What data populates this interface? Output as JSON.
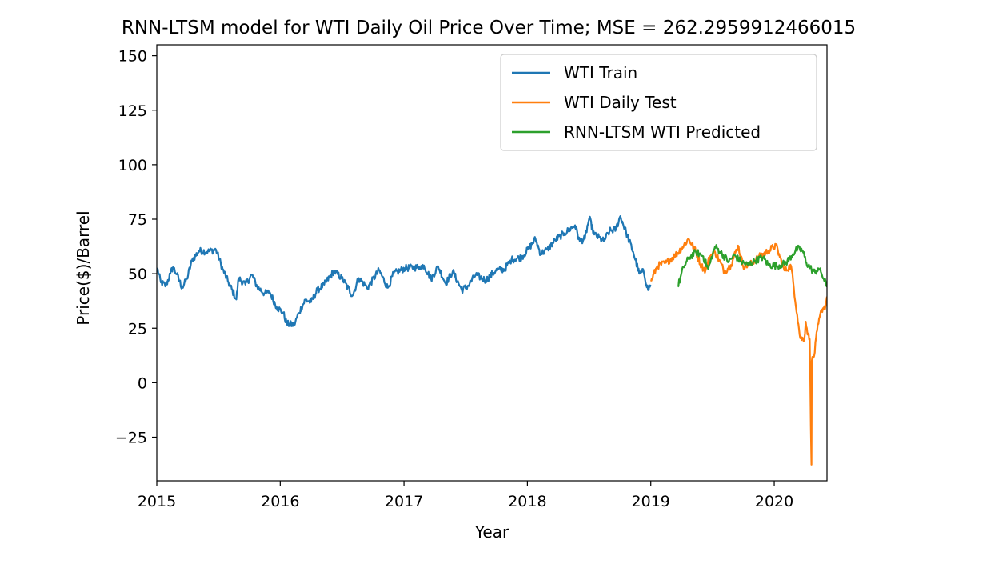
{
  "chart_data": {
    "type": "line",
    "title": "RNN-LTSM model for WTI Daily Oil Price Over Time; MSE = 262.2959912466015",
    "xlabel": "Year",
    "ylabel": "Price($)/Barrel",
    "xlim": [
      "2015-01-01",
      "2020-06-05"
    ],
    "ylim": [
      -45,
      155
    ],
    "xticks": [
      "2015",
      "2016",
      "2017",
      "2018",
      "2019",
      "2020"
    ],
    "yticks": [
      "−25",
      "0",
      "25",
      "50",
      "75",
      "100",
      "125",
      "150"
    ],
    "grid": false,
    "legend_position": "top-right",
    "series": [
      {
        "name": "WTI Train",
        "color": "#1f77b4",
        "points": [
          [
            "2015-01-02",
            52.7
          ],
          [
            "2015-01-13",
            46.0
          ],
          [
            "2015-01-28",
            44.5
          ],
          [
            "2015-02-10",
            50.0
          ],
          [
            "2015-02-18",
            53.0
          ],
          [
            "2015-03-01",
            49.7
          ],
          [
            "2015-03-17",
            43.5
          ],
          [
            "2015-03-31",
            47.6
          ],
          [
            "2015-04-15",
            56.0
          ],
          [
            "2015-05-06",
            60.5
          ],
          [
            "2015-06-01",
            60.2
          ],
          [
            "2015-06-25",
            61.0
          ],
          [
            "2015-07-15",
            52.0
          ],
          [
            "2015-08-01",
            46.0
          ],
          [
            "2015-08-24",
            38.2
          ],
          [
            "2015-08-31",
            48.0
          ],
          [
            "2015-09-20",
            45.0
          ],
          [
            "2015-10-09",
            49.5
          ],
          [
            "2015-10-25",
            44.0
          ],
          [
            "2015-11-15",
            41.0
          ],
          [
            "2015-12-01",
            41.5
          ],
          [
            "2015-12-21",
            34.8
          ],
          [
            "2016-01-10",
            32.0
          ],
          [
            "2016-01-20",
            27.0
          ],
          [
            "2016-02-11",
            26.5
          ],
          [
            "2016-02-25",
            32.0
          ],
          [
            "2016-03-15",
            38.0
          ],
          [
            "2016-04-01",
            37.0
          ],
          [
            "2016-04-20",
            42.5
          ],
          [
            "2016-05-10",
            45.0
          ],
          [
            "2016-06-08",
            51.2
          ],
          [
            "2016-07-01",
            48.0
          ],
          [
            "2016-08-02",
            40.0
          ],
          [
            "2016-08-20",
            48.0
          ],
          [
            "2016-09-15",
            43.5
          ],
          [
            "2016-10-19",
            51.6
          ],
          [
            "2016-11-14",
            43.5
          ],
          [
            "2016-12-01",
            50.0
          ],
          [
            "2017-01-03",
            52.5
          ],
          [
            "2017-02-15",
            53.0
          ],
          [
            "2017-03-01",
            53.8
          ],
          [
            "2017-03-22",
            47.5
          ],
          [
            "2017-04-12",
            53.4
          ],
          [
            "2017-05-04",
            45.5
          ],
          [
            "2017-05-25",
            51.0
          ],
          [
            "2017-06-21",
            42.5
          ],
          [
            "2017-07-10",
            44.5
          ],
          [
            "2017-08-01",
            49.5
          ],
          [
            "2017-08-31",
            47.0
          ],
          [
            "2017-09-30",
            51.5
          ],
          [
            "2017-10-25",
            52.0
          ],
          [
            "2017-11-15",
            56.5
          ],
          [
            "2017-12-15",
            57.5
          ],
          [
            "2018-01-05",
            61.5
          ],
          [
            "2018-01-25",
            66.0
          ],
          [
            "2018-02-09",
            59.2
          ],
          [
            "2018-03-01",
            61.0
          ],
          [
            "2018-03-25",
            65.5
          ],
          [
            "2018-04-20",
            68.5
          ],
          [
            "2018-05-22",
            72.2
          ],
          [
            "2018-06-05",
            65.0
          ],
          [
            "2018-06-20",
            66.0
          ],
          [
            "2018-07-03",
            75.5
          ],
          [
            "2018-07-18",
            68.0
          ],
          [
            "2018-08-15",
            65.0
          ],
          [
            "2018-09-01",
            69.5
          ],
          [
            "2018-09-20",
            70.5
          ],
          [
            "2018-10-03",
            76.4
          ],
          [
            "2018-10-20",
            69.0
          ],
          [
            "2018-11-10",
            60.0
          ],
          [
            "2018-11-28",
            50.0
          ],
          [
            "2018-12-11",
            51.0
          ],
          [
            "2018-12-24",
            42.5
          ],
          [
            "2018-12-31",
            45.0
          ]
        ]
      },
      {
        "name": "WTI Daily Test",
        "color": "#ff7f0e",
        "points": [
          [
            "2019-01-02",
            46.5
          ],
          [
            "2019-01-20",
            53.5
          ],
          [
            "2019-02-15",
            55.0
          ],
          [
            "2019-03-15",
            58.5
          ],
          [
            "2019-04-01",
            61.5
          ],
          [
            "2019-04-23",
            66.0
          ],
          [
            "2019-05-10",
            61.5
          ],
          [
            "2019-05-31",
            53.5
          ],
          [
            "2019-06-12",
            51.5
          ],
          [
            "2019-06-25",
            58.0
          ],
          [
            "2019-07-10",
            60.0
          ],
          [
            "2019-08-07",
            51.0
          ],
          [
            "2019-08-26",
            54.0
          ],
          [
            "2019-09-16",
            62.9
          ],
          [
            "2019-10-01",
            53.5
          ],
          [
            "2019-10-20",
            54.0
          ],
          [
            "2019-11-15",
            57.5
          ],
          [
            "2019-12-15",
            60.5
          ],
          [
            "2020-01-06",
            63.0
          ],
          [
            "2020-01-31",
            51.5
          ],
          [
            "2020-02-20",
            53.5
          ],
          [
            "2020-03-09",
            31.0
          ],
          [
            "2020-03-18",
            20.4
          ],
          [
            "2020-03-30",
            20.0
          ],
          [
            "2020-04-03",
            28.0
          ],
          [
            "2020-04-10",
            22.0
          ],
          [
            "2020-04-15",
            20.0
          ],
          [
            "2020-04-20",
            -37.6
          ],
          [
            "2020-04-21",
            10.0
          ],
          [
            "2020-04-28",
            12.3
          ],
          [
            "2020-05-07",
            24.0
          ],
          [
            "2020-05-20",
            33.5
          ],
          [
            "2020-06-01",
            35.4
          ],
          [
            "2020-06-05",
            39.5
          ]
        ]
      },
      {
        "name": "RNN-LTSM WTI Predicted",
        "color": "#2ca02c",
        "points": [
          [
            "2019-03-22",
            44.0
          ],
          [
            "2019-04-08",
            53.0
          ],
          [
            "2019-04-25",
            57.5
          ],
          [
            "2019-05-15",
            60.0
          ],
          [
            "2019-06-05",
            58.0
          ],
          [
            "2019-06-20",
            52.0
          ],
          [
            "2019-07-10",
            62.5
          ],
          [
            "2019-07-25",
            60.0
          ],
          [
            "2019-08-20",
            55.5
          ],
          [
            "2019-09-05",
            58.5
          ],
          [
            "2019-09-25",
            55.5
          ],
          [
            "2019-10-15",
            54.0
          ],
          [
            "2019-11-05",
            56.0
          ],
          [
            "2019-11-28",
            57.5
          ],
          [
            "2019-12-15",
            54.0
          ],
          [
            "2020-01-10",
            53.5
          ],
          [
            "2020-02-05",
            55.0
          ],
          [
            "2020-02-25",
            59.0
          ],
          [
            "2020-03-10",
            61.5
          ],
          [
            "2020-03-25",
            60.5
          ],
          [
            "2020-04-05",
            55.0
          ],
          [
            "2020-04-20",
            52.0
          ],
          [
            "2020-05-01",
            50.5
          ],
          [
            "2020-05-10",
            52.5
          ],
          [
            "2020-05-20",
            50.0
          ],
          [
            "2020-06-05",
            44.0
          ]
        ]
      }
    ]
  }
}
